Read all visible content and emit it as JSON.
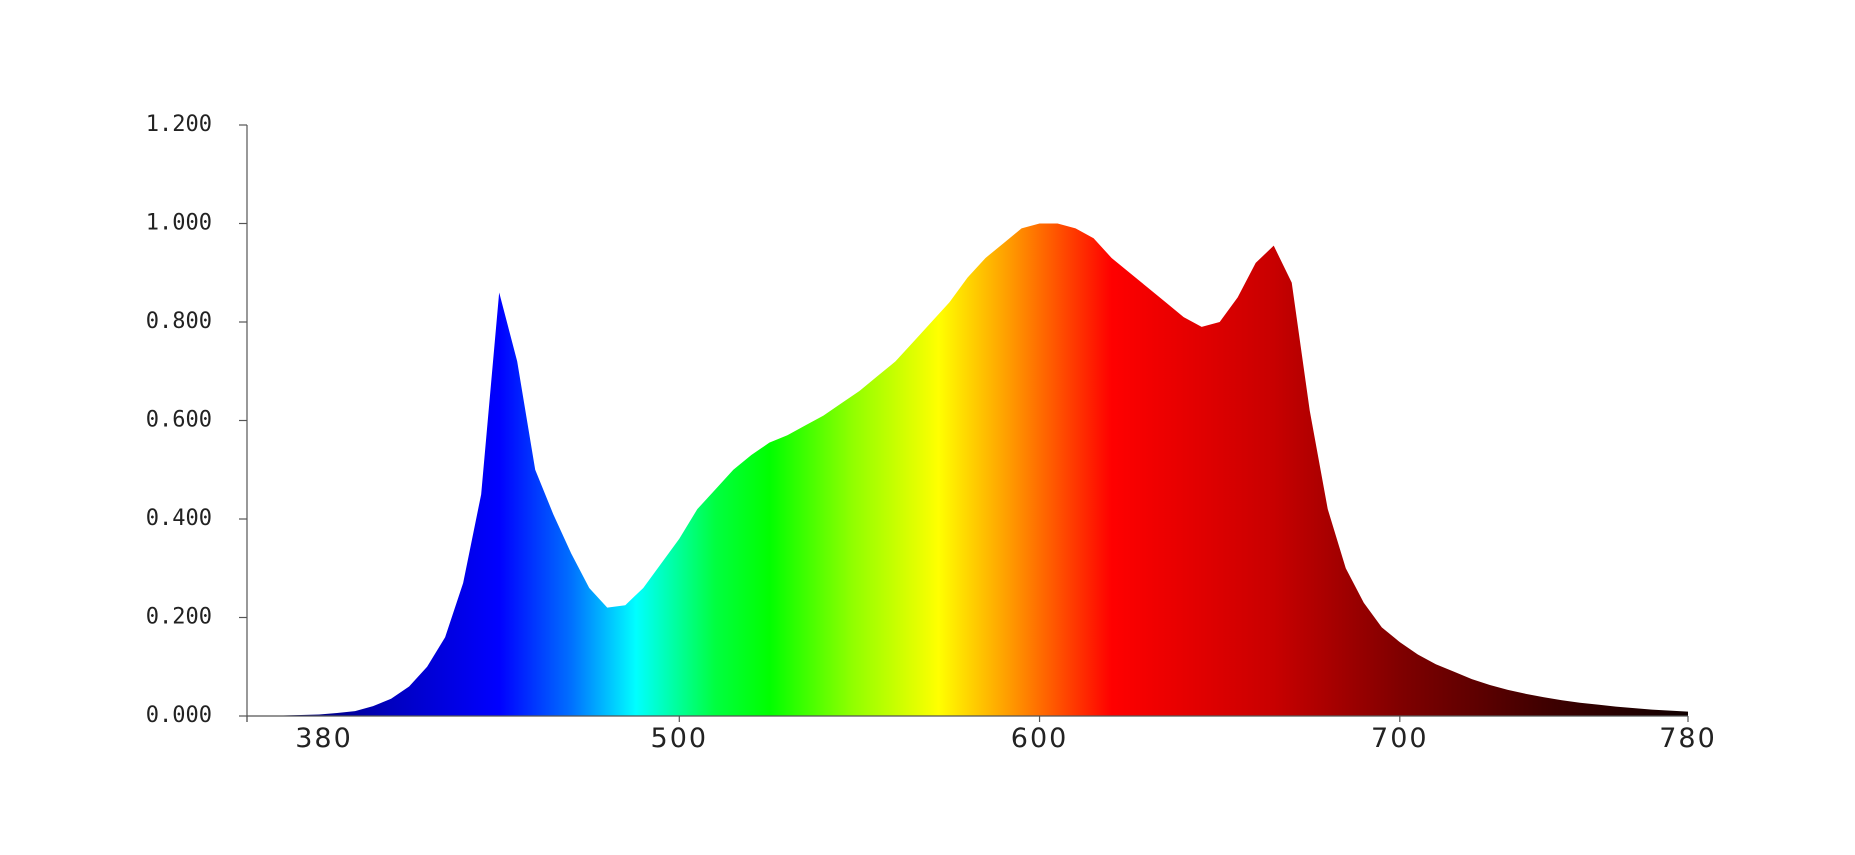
{
  "chart_data": {
    "type": "area",
    "x": [
      380,
      385,
      390,
      395,
      400,
      405,
      410,
      415,
      420,
      425,
      430,
      435,
      440,
      445,
      450,
      455,
      460,
      465,
      470,
      475,
      480,
      485,
      490,
      495,
      500,
      505,
      510,
      515,
      520,
      525,
      530,
      535,
      540,
      545,
      550,
      555,
      560,
      565,
      570,
      575,
      580,
      585,
      590,
      595,
      600,
      605,
      610,
      615,
      620,
      625,
      630,
      635,
      640,
      645,
      650,
      655,
      660,
      665,
      670,
      675,
      680,
      685,
      690,
      695,
      700,
      705,
      710,
      715,
      720,
      725,
      730,
      735,
      740,
      745,
      750,
      755,
      760,
      765,
      770,
      775,
      780
    ],
    "values": [
      0,
      0.0005,
      0.001,
      0.002,
      0.003,
      0.006,
      0.01,
      0.02,
      0.035,
      0.06,
      0.1,
      0.16,
      0.27,
      0.45,
      0.86,
      0.72,
      0.5,
      0.41,
      0.33,
      0.26,
      0.22,
      0.225,
      0.26,
      0.31,
      0.36,
      0.42,
      0.46,
      0.5,
      0.53,
      0.555,
      0.57,
      0.59,
      0.61,
      0.635,
      0.66,
      0.69,
      0.72,
      0.76,
      0.8,
      0.84,
      0.89,
      0.93,
      0.96,
      0.99,
      1.0,
      1.0,
      0.99,
      0.97,
      0.93,
      0.9,
      0.87,
      0.84,
      0.81,
      0.79,
      0.8,
      0.85,
      0.92,
      0.955,
      0.88,
      0.62,
      0.42,
      0.3,
      0.23,
      0.18,
      0.15,
      0.125,
      0.105,
      0.09,
      0.075,
      0.063,
      0.053,
      0.045,
      0.038,
      0.032,
      0.027,
      0.023,
      0.019,
      0.016,
      0.013,
      0.011,
      0.009
    ],
    "xlim": [
      380,
      780
    ],
    "xticks": [
      380,
      500,
      600,
      700,
      780
    ],
    "ylim": [
      0,
      1.2
    ],
    "yticks": [
      {
        "value": 0,
        "label": "0.000"
      },
      {
        "value": 0.2,
        "label": "0.200"
      },
      {
        "value": 0.4,
        "label": "0.400"
      },
      {
        "value": 0.6,
        "label": "0.600"
      },
      {
        "value": 0.8,
        "label": "0.800"
      },
      {
        "value": 1.0,
        "label": "1.000"
      },
      {
        "value": 1.2,
        "label": "1.200"
      }
    ],
    "grid": false
  }
}
